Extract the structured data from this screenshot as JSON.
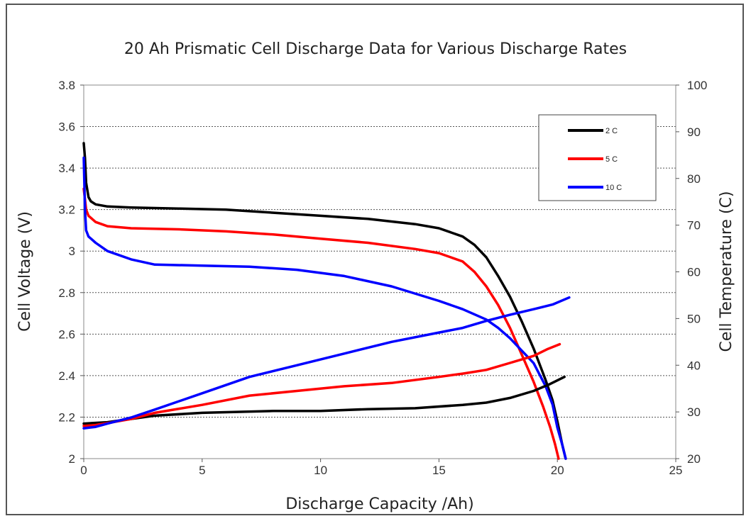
{
  "chart_data": {
    "type": "line",
    "title": "20 Ah Prismatic Cell Discharge Data for Various Discharge Rates",
    "xlabel": "Discharge Capacity /Ah)",
    "ylabel": "Cell Voltage (V)",
    "y2label": "Cell Temperature (C)",
    "xlim": [
      0,
      25
    ],
    "ylim": [
      2,
      3.8
    ],
    "y2lim": [
      20,
      100
    ],
    "x_ticks": [
      "0",
      "5",
      "10",
      "15",
      "20",
      "25"
    ],
    "y_ticks": [
      "2",
      "2.2",
      "2.4",
      "2.6",
      "2.8",
      "3",
      "3.2",
      "3.4",
      "3.6",
      "3.8"
    ],
    "y2_ticks": [
      "20",
      "30",
      "40",
      "50",
      "60",
      "70",
      "80",
      "90",
      "100"
    ],
    "grid": "horizontal dotted",
    "legend_position": "top-right",
    "series": [
      {
        "name": "2C",
        "axis": "voltage",
        "color": "#000000",
        "x": [
          0,
          0.05,
          0.1,
          0.2,
          0.3,
          0.5,
          1,
          2,
          4,
          6,
          8,
          10,
          12,
          14,
          15,
          16,
          16.5,
          17,
          17.5,
          18,
          18.5,
          19,
          19.5,
          19.8,
          20.0,
          20.2,
          20.35
        ],
        "y": [
          3.52,
          3.45,
          3.33,
          3.26,
          3.24,
          3.225,
          3.215,
          3.21,
          3.205,
          3.2,
          3.185,
          3.17,
          3.155,
          3.13,
          3.11,
          3.07,
          3.03,
          2.97,
          2.88,
          2.78,
          2.66,
          2.53,
          2.38,
          2.28,
          2.18,
          2.07,
          2.0
        ]
      },
      {
        "name": "5C",
        "axis": "voltage",
        "color": "#ff0000",
        "x": [
          0,
          0.05,
          0.1,
          0.2,
          0.5,
          1,
          2,
          4,
          6,
          8,
          10,
          12,
          14,
          15,
          16,
          16.5,
          17,
          17.5,
          18,
          18.5,
          19,
          19.4,
          19.7,
          19.9,
          20.05
        ],
        "y": [
          3.3,
          3.25,
          3.2,
          3.17,
          3.14,
          3.12,
          3.11,
          3.105,
          3.095,
          3.08,
          3.06,
          3.04,
          3.01,
          2.99,
          2.95,
          2.9,
          2.83,
          2.74,
          2.63,
          2.5,
          2.37,
          2.25,
          2.15,
          2.07,
          2.0
        ]
      },
      {
        "name": "10C",
        "axis": "voltage",
        "color": "#0000ff",
        "x": [
          0,
          0.05,
          0.1,
          0.2,
          0.5,
          1,
          2,
          3,
          5,
          7,
          9,
          11,
          13,
          15,
          16,
          17,
          17.5,
          18,
          18.5,
          19,
          19.5,
          19.8,
          20.0,
          20.2,
          20.35
        ],
        "y": [
          3.45,
          3.2,
          3.1,
          3.07,
          3.04,
          3.0,
          2.96,
          2.935,
          2.93,
          2.925,
          2.91,
          2.88,
          2.83,
          2.76,
          2.72,
          2.67,
          2.63,
          2.58,
          2.52,
          2.46,
          2.35,
          2.26,
          2.15,
          2.07,
          2.0
        ]
      },
      {
        "name": "2C temperature",
        "axis": "temperature",
        "color": "#000000",
        "x": [
          0,
          1,
          3,
          5,
          8,
          10,
          12,
          14,
          16,
          17,
          18,
          19,
          19.7,
          20.3
        ],
        "y": [
          27.5,
          27.8,
          29.2,
          29.8,
          30.2,
          30.2,
          30.6,
          30.8,
          31.5,
          32,
          33,
          34.5,
          36,
          37.5
        ]
      },
      {
        "name": "5C temperature",
        "axis": "temperature",
        "color": "#ff0000",
        "x": [
          0,
          0.5,
          1,
          2,
          3,
          5,
          7,
          9,
          11,
          13,
          15,
          16,
          17,
          18,
          19,
          19.6,
          20.1
        ],
        "y": [
          27,
          27.2,
          27.6,
          28.5,
          29.8,
          31.5,
          33.5,
          34.5,
          35.5,
          36.2,
          37.5,
          38.2,
          39,
          40.5,
          42,
          43.5,
          44.5
        ]
      },
      {
        "name": "10C temperature",
        "axis": "temperature",
        "color": "#0000ff",
        "x": [
          0,
          0.5,
          1,
          2,
          3,
          5,
          7,
          9,
          11,
          13,
          15,
          16,
          17,
          18,
          19,
          19.8,
          20.5
        ],
        "y": [
          26.5,
          26.8,
          27.5,
          28.8,
          30.5,
          34,
          37.5,
          40,
          42.5,
          45,
          47,
          48,
          49.5,
          50.8,
          52,
          53,
          54.5
        ]
      }
    ],
    "legend": [
      {
        "label": "2 C",
        "color": "#000000"
      },
      {
        "label": "5 C",
        "color": "#ff0000"
      },
      {
        "label": "10 C",
        "color": "#0000ff"
      }
    ]
  }
}
